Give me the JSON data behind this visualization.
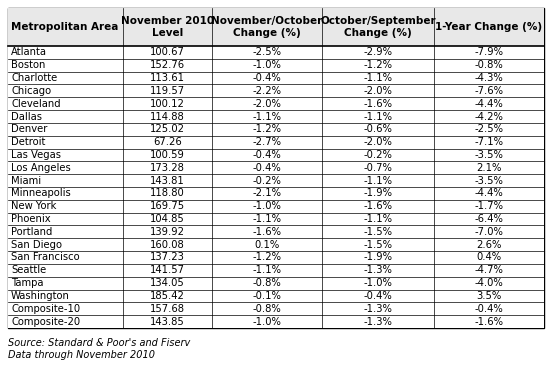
{
  "headers": [
    "Metropolitan Area",
    "November 2010\nLevel",
    "November/October\nChange (%)",
    "October/September\nChange (%)",
    "1-Year Change (%)"
  ],
  "rows": [
    [
      "Atlanta",
      "100.67",
      "-2.5%",
      "-2.9%",
      "-7.9%"
    ],
    [
      "Boston",
      "152.76",
      "-1.0%",
      "-1.2%",
      "-0.8%"
    ],
    [
      "Charlotte",
      "113.61",
      "-0.4%",
      "-1.1%",
      "-4.3%"
    ],
    [
      "Chicago",
      "119.57",
      "-2.2%",
      "-2.0%",
      "-7.6%"
    ],
    [
      "Cleveland",
      "100.12",
      "-2.0%",
      "-1.6%",
      "-4.4%"
    ],
    [
      "Dallas",
      "114.88",
      "-1.1%",
      "-1.1%",
      "-4.2%"
    ],
    [
      "Denver",
      "125.02",
      "-1.2%",
      "-0.6%",
      "-2.5%"
    ],
    [
      "Detroit",
      "67.26",
      "-2.7%",
      "-2.0%",
      "-7.1%"
    ],
    [
      "Las Vegas",
      "100.59",
      "-0.4%",
      "-0.2%",
      "-3.5%"
    ],
    [
      "Los Angeles",
      "173.28",
      "-0.4%",
      "-0.7%",
      "2.1%"
    ],
    [
      "Miami",
      "143.81",
      "-0.2%",
      "-1.1%",
      "-3.5%"
    ],
    [
      "Minneapolis",
      "118.80",
      "-2.1%",
      "-1.9%",
      "-4.4%"
    ],
    [
      "New York",
      "169.75",
      "-1.0%",
      "-1.6%",
      "-1.7%"
    ],
    [
      "Phoenix",
      "104.85",
      "-1.1%",
      "-1.1%",
      "-6.4%"
    ],
    [
      "Portland",
      "139.92",
      "-1.6%",
      "-1.5%",
      "-7.0%"
    ],
    [
      "San Diego",
      "160.08",
      "0.1%",
      "-1.5%",
      "2.6%"
    ],
    [
      "San Francisco",
      "137.23",
      "-1.2%",
      "-1.9%",
      "0.4%"
    ],
    [
      "Seattle",
      "141.57",
      "-1.1%",
      "-1.3%",
      "-4.7%"
    ],
    [
      "Tampa",
      "134.05",
      "-0.8%",
      "-1.0%",
      "-4.0%"
    ],
    [
      "Washington",
      "185.42",
      "-0.1%",
      "-0.4%",
      "3.5%"
    ],
    [
      "Composite-10",
      "157.68",
      "-0.8%",
      "-1.3%",
      "-0.4%"
    ],
    [
      "Composite-20",
      "143.85",
      "-1.0%",
      "-1.3%",
      "-1.6%"
    ]
  ],
  "footnote1": "Source: Standard & Poor's and Fiserv",
  "footnote2": "Data through November 2010",
  "border_color": "#000000",
  "text_color": "#000000",
  "font_size": 7.2,
  "header_font_size": 7.5
}
